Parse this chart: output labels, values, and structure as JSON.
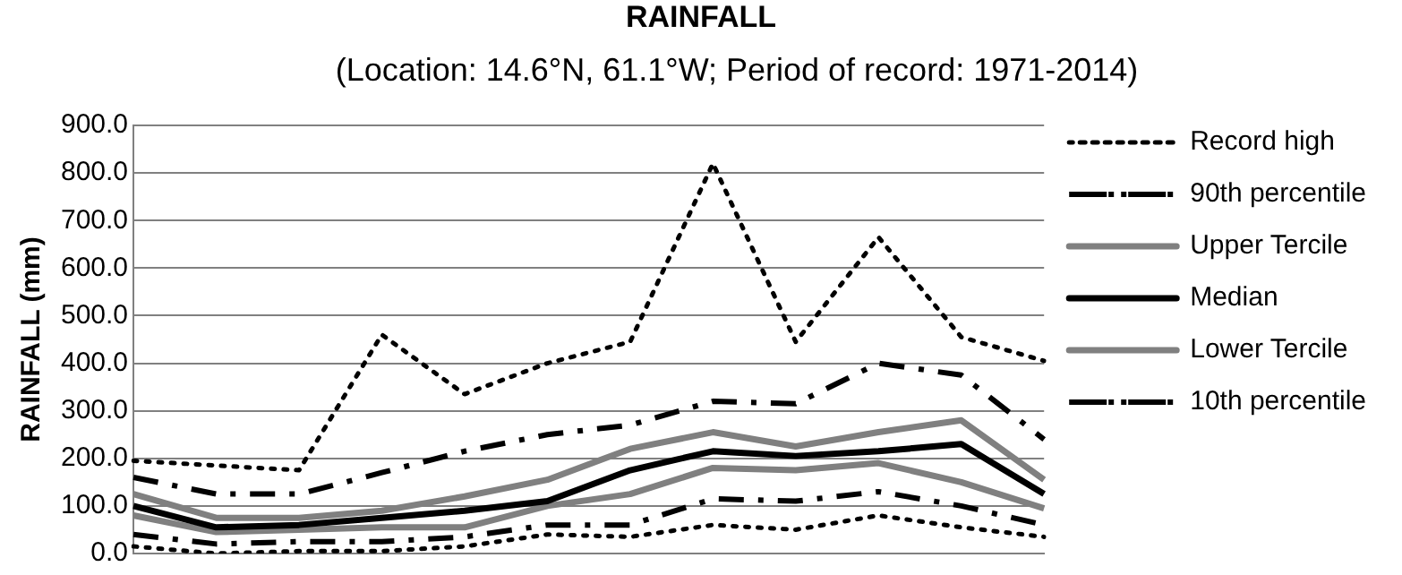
{
  "chart_data": {
    "type": "line",
    "title": "RAINFALL",
    "subtitle": "(Location: 14.6°N, 61.1°W; Period of record: 1971-2014)",
    "ylabel": "RAINFALL (mm)",
    "categories": [
      null,
      null,
      null,
      null,
      null,
      null,
      null,
      null,
      null,
      null,
      null,
      null
    ],
    "ylim": [
      0,
      900
    ],
    "yticks": [
      {
        "value": 0,
        "label": "0.0"
      },
      {
        "value": 100,
        "label": "100.0"
      },
      {
        "value": 200,
        "label": "200.0"
      },
      {
        "value": 300,
        "label": "300.0"
      },
      {
        "value": 400,
        "label": "400.0"
      },
      {
        "value": 500,
        "label": "500.0"
      },
      {
        "value": 600,
        "label": "600.0"
      },
      {
        "value": 700,
        "label": "700.0"
      },
      {
        "value": 800,
        "label": "800.0"
      },
      {
        "value": 900,
        "label": "900.0"
      }
    ],
    "grid": "y",
    "legend": "right",
    "marker": "none",
    "tick_labels": "y",
    "series": [
      {
        "name": "Record high",
        "color": "#000000",
        "line_style": "dotted",
        "values": [
          195,
          185,
          175,
          460,
          335,
          400,
          445,
          820,
          445,
          665,
          455,
          405
        ]
      },
      {
        "name": "90th percentile",
        "color": "#000000",
        "line_style": "dashed",
        "values": [
          160,
          125,
          125,
          170,
          215,
          250,
          270,
          320,
          315,
          400,
          375,
          240
        ]
      },
      {
        "name": "Upper Tercile",
        "color": "#808080",
        "line_style": "solid",
        "values": [
          125,
          75,
          75,
          90,
          120,
          155,
          220,
          255,
          225,
          255,
          280,
          155
        ]
      },
      {
        "name": "Median",
        "color": "#000000",
        "line_style": "solid",
        "values": [
          100,
          55,
          60,
          75,
          90,
          110,
          175,
          215,
          205,
          215,
          230,
          125
        ]
      },
      {
        "name": "Lower Tercile",
        "color": "#808080",
        "line_style": "solid",
        "values": [
          80,
          45,
          50,
          55,
          55,
          100,
          125,
          180,
          175,
          190,
          150,
          95
        ]
      },
      {
        "name": "10th percentile",
        "color": "#000000",
        "line_style": "dashed",
        "values": [
          40,
          20,
          25,
          25,
          35,
          60,
          60,
          115,
          110,
          130,
          100,
          60
        ]
      },
      {
        "color": "#000000",
        "line_style": "dotted",
        "values": [
          15,
          0,
          5,
          5,
          15,
          40,
          35,
          60,
          50,
          80,
          55,
          35
        ]
      }
    ]
  }
}
